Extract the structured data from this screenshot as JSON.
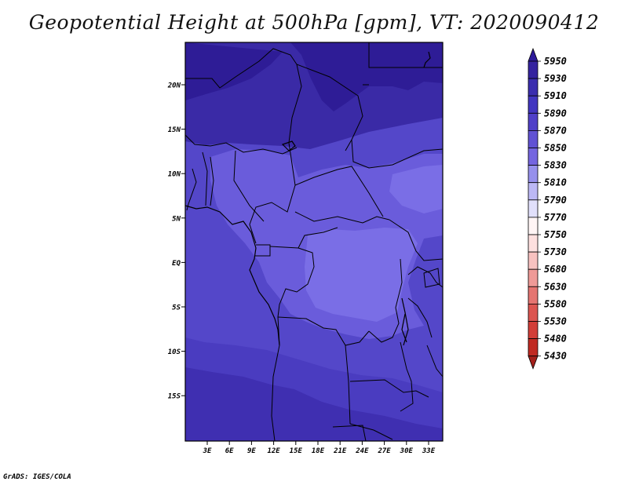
{
  "title": "Geopotential Height at 500hPa [gpm], VT: 2020090412",
  "credit": "GrADS: IGES/COLA",
  "map": {
    "lon_labels": [
      "3E",
      "6E",
      "9E",
      "12E",
      "15E",
      "18E",
      "21E",
      "24E",
      "27E",
      "30E",
      "33E"
    ],
    "lat_labels": [
      "20N",
      "15N",
      "10N",
      "5N",
      "EQ",
      "5S",
      "10S",
      "15S"
    ],
    "lon_range": [
      0,
      35
    ],
    "lat_range": [
      -20,
      25
    ]
  },
  "legend": {
    "values": [
      "5950",
      "5930",
      "5910",
      "5890",
      "5870",
      "5850",
      "5830",
      "5810",
      "5790",
      "5770",
      "5750",
      "5730",
      "5680",
      "5630",
      "5580",
      "5530",
      "5480",
      "5430"
    ],
    "colors": [
      "#2d1a9a",
      "#35239f",
      "#3b2eaf",
      "#4236c0",
      "#5040c8",
      "#6152d4",
      "#7465e0",
      "#9690ec",
      "#bcb8f5",
      "#e1e0fb",
      "#fff5f5",
      "#fde0df",
      "#f8c2c0",
      "#ef9a97",
      "#e57571",
      "#dc5550",
      "#d23e38",
      "#c02a22",
      "#a4201b"
    ]
  }
}
